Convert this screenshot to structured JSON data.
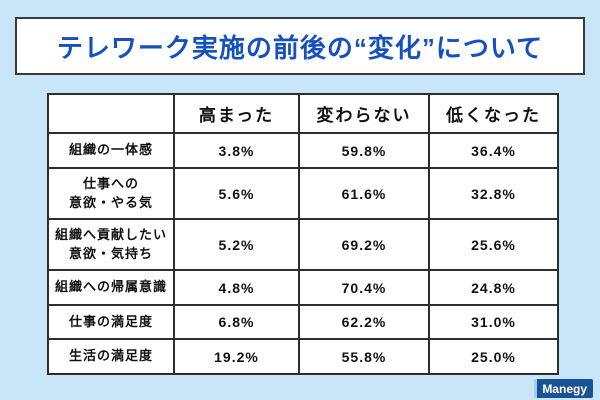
{
  "page": {
    "background_color": "#c9e6f8",
    "accent_blue": "#1450be",
    "border_color": "#2e2e2e"
  },
  "title": {
    "text": "テレワーク実施の前後の“変化”について"
  },
  "table": {
    "corner": "",
    "headers": [
      "高まった",
      "変わらない",
      "低くなった"
    ],
    "rows": [
      {
        "label": "組織の一体感",
        "values": [
          "3.8%",
          "59.8%",
          "36.4%"
        ]
      },
      {
        "label": "仕事への\n意欲・やる気",
        "values": [
          "5.6%",
          "61.6%",
          "32.8%"
        ]
      },
      {
        "label": "組織へ貢献したい\n意欲・気持ち",
        "values": [
          "5.2%",
          "69.2%",
          "25.6%"
        ]
      },
      {
        "label": "組織への帰属意識",
        "values": [
          "4.8%",
          "70.4%",
          "24.8%"
        ]
      },
      {
        "label": "仕事の満足度",
        "values": [
          "6.8%",
          "62.2%",
          "31.0%"
        ]
      },
      {
        "label": "生活の満足度",
        "values": [
          "19.2%",
          "55.8%",
          "25.0%"
        ]
      }
    ]
  },
  "logo": {
    "text": "Manegy",
    "background": "#1a5296",
    "color": "#ffffff"
  },
  "chart_data": {
    "type": "table",
    "title": "テレワーク実施の前後の“変化”について",
    "columns": [
      "高まった",
      "変わらない",
      "低くなった"
    ],
    "categories": [
      "組織の一体感",
      "仕事への意欲・やる気",
      "組織へ貢献したい意欲・気持ち",
      "組織への帰属意識",
      "仕事の満足度",
      "生活の満足度"
    ],
    "series": [
      {
        "name": "高まった",
        "values": [
          3.8,
          5.6,
          5.2,
          4.8,
          6.8,
          19.2
        ]
      },
      {
        "name": "変わらない",
        "values": [
          59.8,
          61.6,
          69.2,
          70.4,
          62.2,
          55.8
        ]
      },
      {
        "name": "低くなった",
        "values": [
          36.4,
          32.8,
          25.6,
          24.8,
          31.0,
          25.0
        ]
      }
    ],
    "unit": "%"
  }
}
